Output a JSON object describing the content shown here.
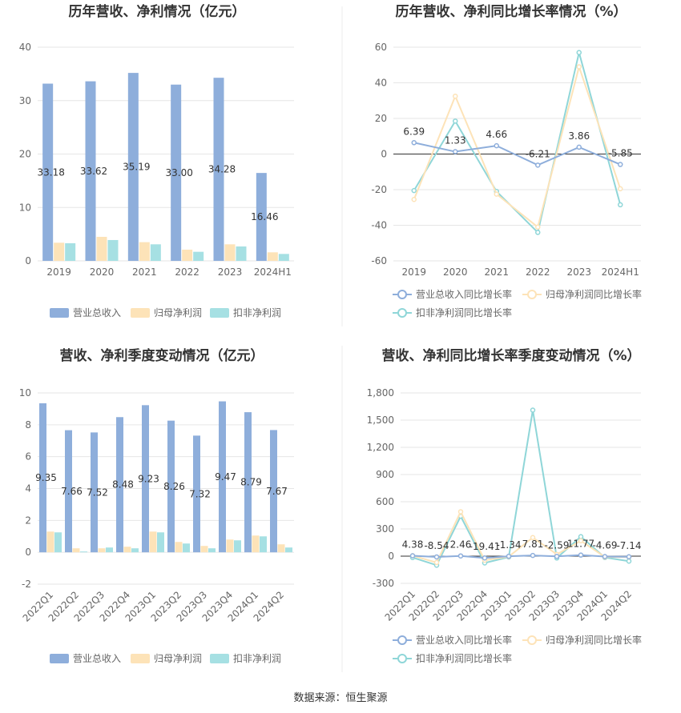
{
  "source": "数据来源：恒生聚源",
  "colors": {
    "revenue": "#8eaedb",
    "net_profit": "#fde3b8",
    "deducted_profit": "#a6e0e3",
    "line_revenue": "#8eaedb",
    "line_net": "#fde3b8",
    "line_deducted": "#8fd6d8"
  },
  "chart_data": [
    {
      "type": "bar",
      "title": "历年营收、净利情况（亿元）",
      "categories": [
        "2019",
        "2020",
        "2021",
        "2022",
        "2023",
        "2024H1"
      ],
      "ylim": [
        0,
        40
      ],
      "yticks": [
        0,
        10,
        20,
        30,
        40
      ],
      "series": [
        {
          "name": "营业总收入",
          "values": [
            33.18,
            33.62,
            35.19,
            33.0,
            34.28,
            16.46
          ],
          "labels": [
            "33.18",
            "33.62",
            "35.19",
            "33.00",
            "34.28",
            "16.46"
          ]
        },
        {
          "name": "归母净利润",
          "values": [
            3.4,
            4.5,
            3.5,
            2.1,
            3.1,
            1.6
          ]
        },
        {
          "name": "扣非净利润",
          "values": [
            3.3,
            3.9,
            3.1,
            1.7,
            2.7,
            1.3
          ]
        }
      ]
    },
    {
      "type": "line",
      "title": "历年营收、净利同比增长率情况（%）",
      "categories": [
        "2019",
        "2020",
        "2021",
        "2022",
        "2023",
        "2024H1"
      ],
      "ylim": [
        -60,
        60
      ],
      "yticks": [
        -60,
        -40,
        -20,
        0,
        20,
        40,
        60
      ],
      "series": [
        {
          "name": "营业总收入同比增长率",
          "values": [
            6.39,
            1.33,
            4.66,
            -6.21,
            3.86,
            -5.85
          ],
          "labels": [
            "6.39",
            "1.33",
            "4.66",
            "-6.21",
            "3.86",
            "-5.85"
          ]
        },
        {
          "name": "归母净利润同比增长率",
          "values": [
            -25.5,
            32.5,
            -22.5,
            -41,
            49,
            -19.5
          ]
        },
        {
          "name": "扣非净利润同比增长率",
          "values": [
            -20.5,
            18.5,
            -21,
            -44,
            57,
            -28.5
          ]
        }
      ]
    },
    {
      "type": "bar",
      "title": "营收、净利季度变动情况（亿元）",
      "categories": [
        "2022Q1",
        "2022Q2",
        "2022Q3",
        "2022Q4",
        "2023Q1",
        "2023Q2",
        "2023Q3",
        "2023Q4",
        "2024Q1",
        "2024Q2"
      ],
      "ylim": [
        -2,
        10
      ],
      "yticks": [
        -2,
        0,
        2,
        4,
        6,
        8,
        10
      ],
      "series": [
        {
          "name": "营业总收入",
          "values": [
            9.35,
            7.66,
            7.52,
            8.48,
            9.23,
            8.26,
            7.32,
            9.47,
            8.79,
            7.67
          ],
          "labels": [
            "9.35",
            "7.66",
            "7.52",
            "8.48",
            "9.23",
            "8.26",
            "7.32",
            "9.47",
            "8.79",
            "7.67"
          ]
        },
        {
          "name": "归母净利润",
          "values": [
            1.3,
            0.25,
            0.25,
            0.35,
            1.3,
            0.65,
            0.4,
            0.8,
            1.05,
            0.5
          ]
        },
        {
          "name": "扣非净利润",
          "values": [
            1.25,
            0.05,
            0.3,
            0.25,
            1.25,
            0.55,
            0.25,
            0.75,
            1.0,
            0.3
          ]
        }
      ]
    },
    {
      "type": "line",
      "title": "营收、净利同比增长率季度变动情况（%）",
      "categories": [
        "2022Q1",
        "2022Q2",
        "2022Q3",
        "2022Q4",
        "2023Q1",
        "2023Q2",
        "2023Q3",
        "2023Q4",
        "2024Q1",
        "2024Q2"
      ],
      "ylim": [
        -300,
        1800
      ],
      "yticks": [
        -300,
        0,
        300,
        600,
        900,
        1200,
        1500,
        1800
      ],
      "ytick_labels": [
        "-300",
        "0",
        "300",
        "600",
        "900",
        "1,200",
        "1,500",
        "1,800"
      ],
      "series": [
        {
          "name": "营业总收入同比增长率",
          "values": [
            4.38,
            -8.54,
            2.46,
            -19.41,
            -1.34,
            7.81,
            -2.59,
            11.77,
            -4.69,
            -7.14
          ],
          "labels": [
            "4.38",
            "-8.54",
            "2.46",
            "-19.41",
            "-1.34",
            "7.81",
            "-2.59",
            "11.77",
            "-4.69",
            "-7.14"
          ]
        },
        {
          "name": "归母净利润同比增长率",
          "values": [
            5,
            -70,
            490,
            -45,
            -5,
            205,
            20,
            170,
            -10,
            -10
          ]
        },
        {
          "name": "扣非净利润同比增长率",
          "values": [
            -15,
            -100,
            440,
            -75,
            -10,
            1610,
            -20,
            215,
            -15,
            -55
          ]
        }
      ]
    }
  ]
}
